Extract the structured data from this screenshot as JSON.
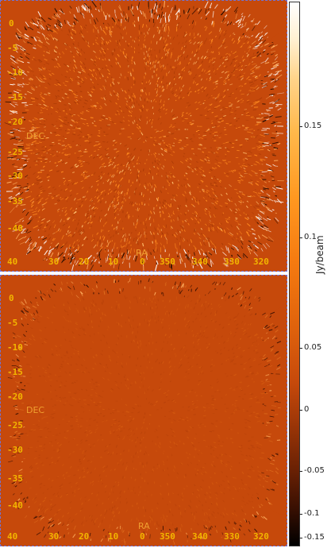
{
  "panels": [
    {
      "name": "top",
      "dec_labels": [
        "0",
        "-5",
        "-10",
        "-15",
        "-20",
        "-25",
        "-30",
        "-35",
        "-40"
      ],
      "ra_labels": [
        "40",
        "30",
        "20",
        "10",
        "0",
        "350",
        "340",
        "330",
        "320"
      ],
      "dec_axis_name": "DEC",
      "ra_axis_name": "RA",
      "noise_intensity": "high"
    },
    {
      "name": "bottom",
      "dec_labels": [
        "0",
        "-5",
        "-10",
        "-15",
        "-20",
        "-25",
        "-30",
        "-35",
        "-40"
      ],
      "ra_labels": [
        "40",
        "30",
        "20",
        "10",
        "0",
        "350",
        "340",
        "330",
        "320"
      ],
      "dec_axis_name": "DEC",
      "ra_axis_name": "RA",
      "noise_intensity": "low"
    }
  ],
  "colorbar": {
    "unit": "Jy/beam",
    "ticks": [
      "0.15",
      "0.1",
      "0.05",
      "0",
      "-0.05",
      "-0.1",
      "-0.15"
    ],
    "tick_values": [
      0.15,
      0.1,
      0.05,
      0,
      -0.05,
      -0.1,
      -0.15
    ],
    "range": [
      -0.16,
      0.2
    ]
  },
  "colors": {
    "background": "#c6490b",
    "label": "#f2b500",
    "frame": "#6f73d9"
  }
}
